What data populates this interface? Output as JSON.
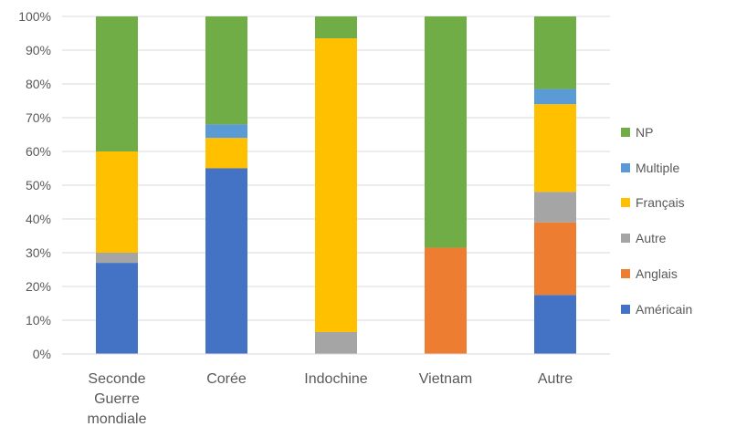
{
  "chart_data": {
    "type": "bar",
    "stacked": true,
    "percent": true,
    "categories": [
      "Seconde Guerre mondiale",
      "Corée",
      "Indochine",
      "Vietnam",
      "Autre"
    ],
    "category_lines": [
      [
        "Seconde",
        "Guerre",
        "mondiale"
      ],
      [
        "Corée"
      ],
      [
        "Indochine"
      ],
      [
        "Vietnam"
      ],
      [
        "Autre"
      ]
    ],
    "series": [
      {
        "name": "Américain",
        "color": "#4472C4",
        "values": [
          27,
          55,
          0,
          0,
          17.5
        ]
      },
      {
        "name": "Anglais",
        "color": "#ED7D31",
        "values": [
          0,
          0,
          0,
          31.5,
          21.5
        ]
      },
      {
        "name": "Autre",
        "color": "#A5A5A5",
        "values": [
          3,
          0,
          6.5,
          0,
          9
        ]
      },
      {
        "name": "Français",
        "color": "#FFC000",
        "values": [
          30,
          9,
          87,
          0,
          26
        ]
      },
      {
        "name": "Multiple",
        "color": "#5B9BD5",
        "values": [
          0,
          4,
          0,
          0,
          4.5
        ]
      },
      {
        "name": "NP",
        "color": "#70AD47",
        "values": [
          40,
          32,
          6.5,
          68.5,
          21.5
        ]
      }
    ],
    "ylim": [
      0,
      100
    ],
    "yticks": [
      "0%",
      "10%",
      "20%",
      "30%",
      "40%",
      "50%",
      "60%",
      "70%",
      "80%",
      "90%",
      "100%"
    ],
    "grid": true,
    "legend_position": "right",
    "legend_order": [
      "NP",
      "Multiple",
      "Français",
      "Autre",
      "Anglais",
      "Américain"
    ],
    "title": "",
    "xlabel": "",
    "ylabel": ""
  }
}
